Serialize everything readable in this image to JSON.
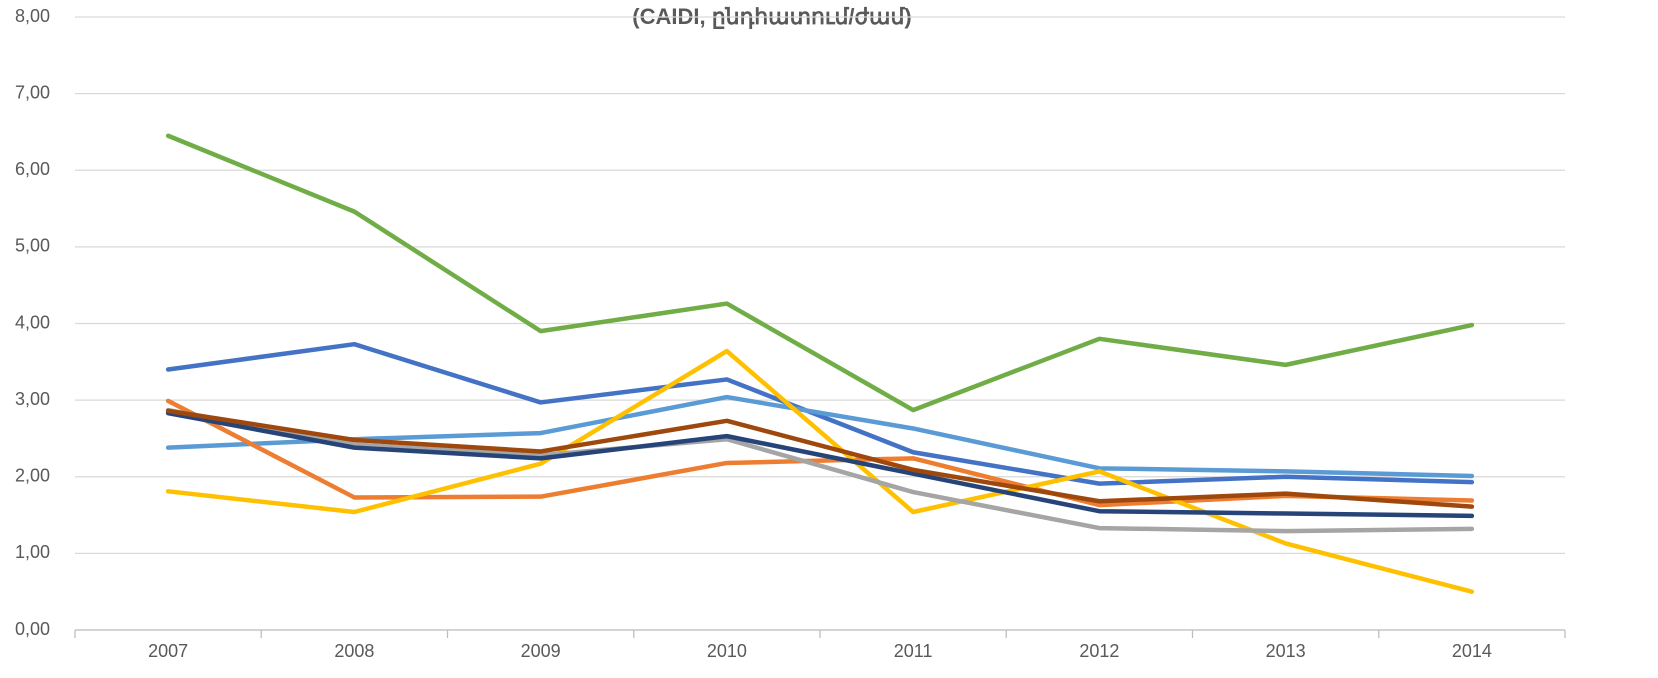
{
  "chart_data": {
    "type": "line",
    "title": "(CAIDI, ընդհատում/ժամ)",
    "categories": [
      "2007",
      "2008",
      "2009",
      "2010",
      "2011",
      "2012",
      "2013",
      "2014"
    ],
    "series": [
      {
        "color": "#70ad47",
        "values": [
          6.45,
          5.46,
          3.9,
          4.26,
          2.87,
          3.8,
          3.46,
          3.98
        ]
      },
      {
        "color": "#4472c4",
        "values": [
          3.4,
          3.73,
          2.97,
          3.27,
          2.32,
          1.91,
          2.0,
          1.93
        ]
      },
      {
        "color": "#5b9bd5",
        "values": [
          2.38,
          2.49,
          2.57,
          3.04,
          2.63,
          2.11,
          2.07,
          2.01
        ]
      },
      {
        "color": "#ed7d31",
        "values": [
          2.99,
          1.73,
          1.74,
          2.18,
          2.24,
          1.63,
          1.75,
          1.69
        ]
      },
      {
        "color": "#ffc000",
        "values": [
          1.81,
          1.54,
          2.17,
          3.64,
          1.54,
          2.07,
          1.13,
          0.5
        ]
      },
      {
        "color": "#a5a5a5",
        "values": [
          2.87,
          2.42,
          2.28,
          2.49,
          1.8,
          1.33,
          1.29,
          1.32
        ]
      },
      {
        "color": "#264478",
        "values": [
          2.83,
          2.38,
          2.24,
          2.53,
          2.04,
          1.55,
          1.52,
          1.49
        ]
      },
      {
        "color": "#9e480e",
        "values": [
          2.86,
          2.48,
          2.33,
          2.73,
          2.09,
          1.68,
          1.78,
          1.61
        ]
      }
    ],
    "ylim": [
      0,
      8
    ],
    "yticks": [
      {
        "value": 0,
        "label": "0,00"
      },
      {
        "value": 1,
        "label": "1,00"
      },
      {
        "value": 2,
        "label": "2,00"
      },
      {
        "value": 3,
        "label": "3,00"
      },
      {
        "value": 4,
        "label": "4,00"
      },
      {
        "value": 5,
        "label": "5,00"
      },
      {
        "value": 6,
        "label": "6,00"
      },
      {
        "value": 7,
        "label": "7,00"
      },
      {
        "value": 8,
        "label": "8,00"
      }
    ],
    "grid": true
  }
}
